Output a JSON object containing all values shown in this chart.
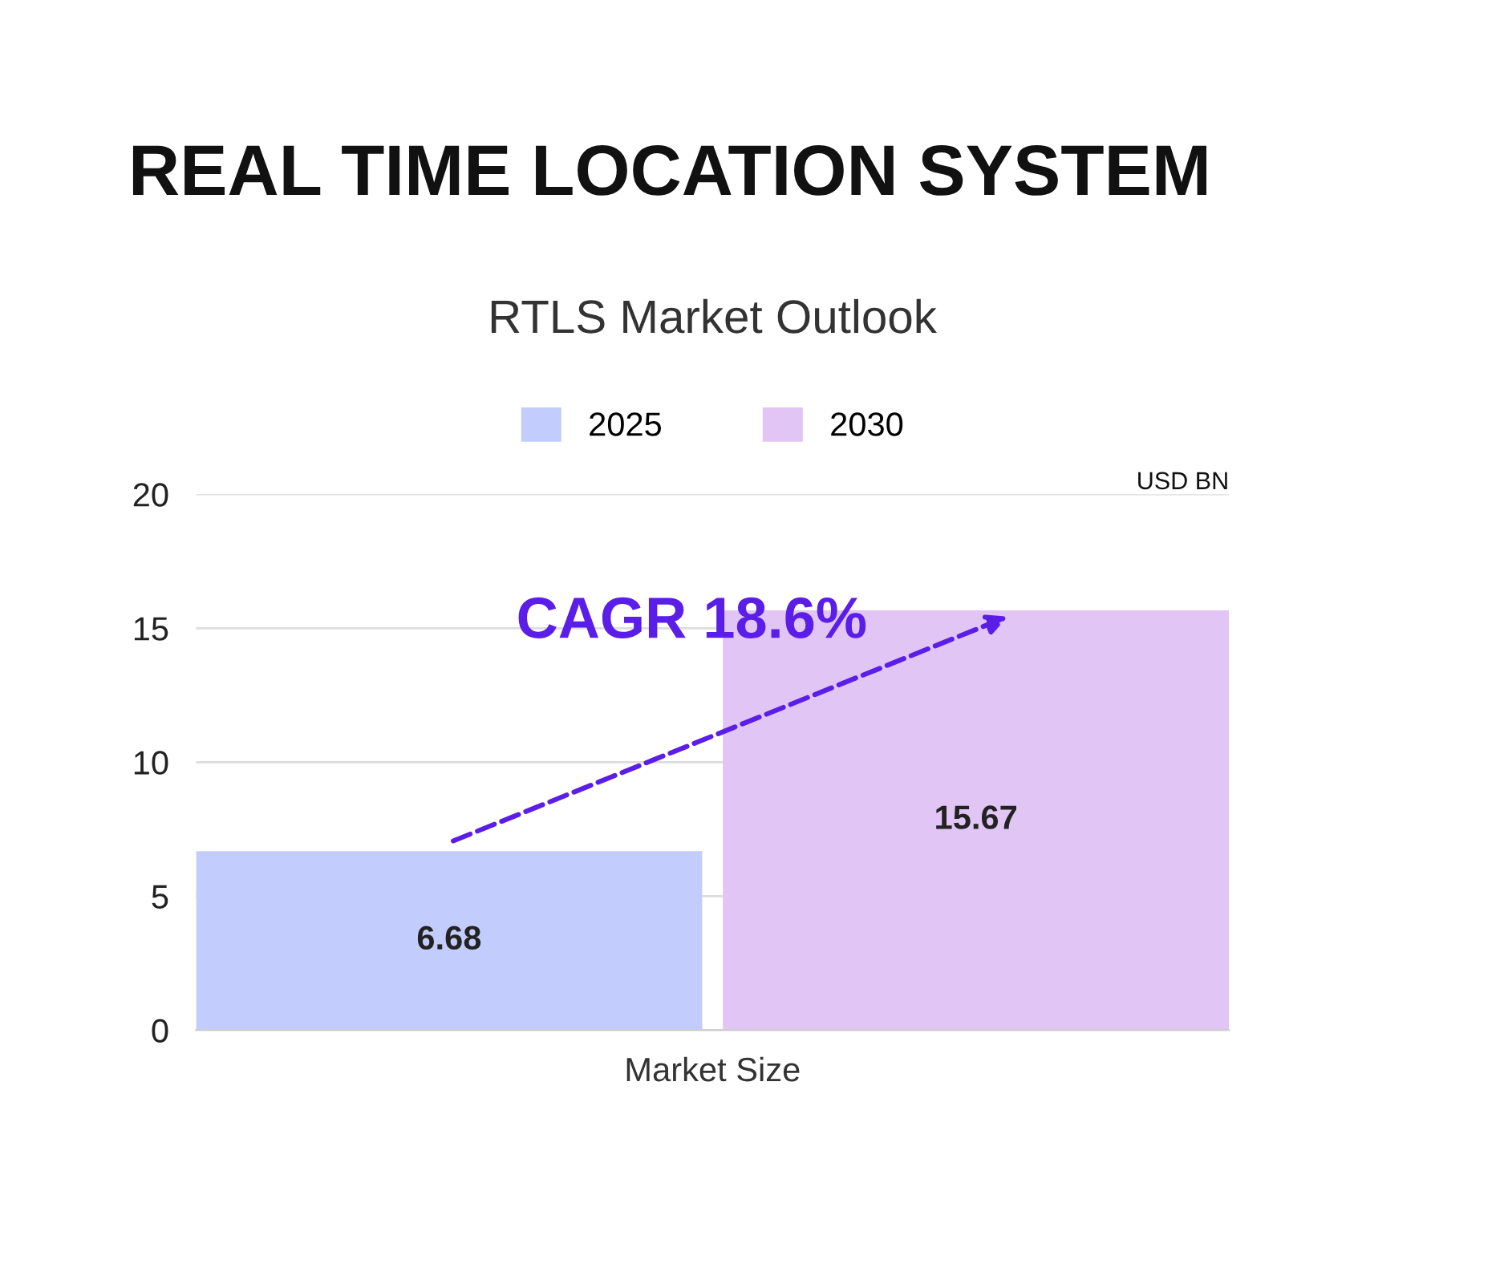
{
  "chart_data": {
    "type": "bar",
    "title": "REAL TIME LOCATION SYSTEM",
    "subtitle": "RTLS Market Outlook",
    "categories": [
      "Market Size"
    ],
    "series": [
      {
        "name": "2025",
        "color": "#c3cdfd",
        "values": [
          6.68
        ]
      },
      {
        "name": "2030",
        "color": "#e1c5f5",
        "values": [
          15.67
        ]
      }
    ],
    "ylabel": "USD BN",
    "annotations": [
      "CAGR 18.6%"
    ],
    "ylim": [
      0,
      20
    ],
    "yticks": [
      0,
      5,
      10,
      15,
      20
    ],
    "grid": "y",
    "legend": "top",
    "data_labels": true
  }
}
